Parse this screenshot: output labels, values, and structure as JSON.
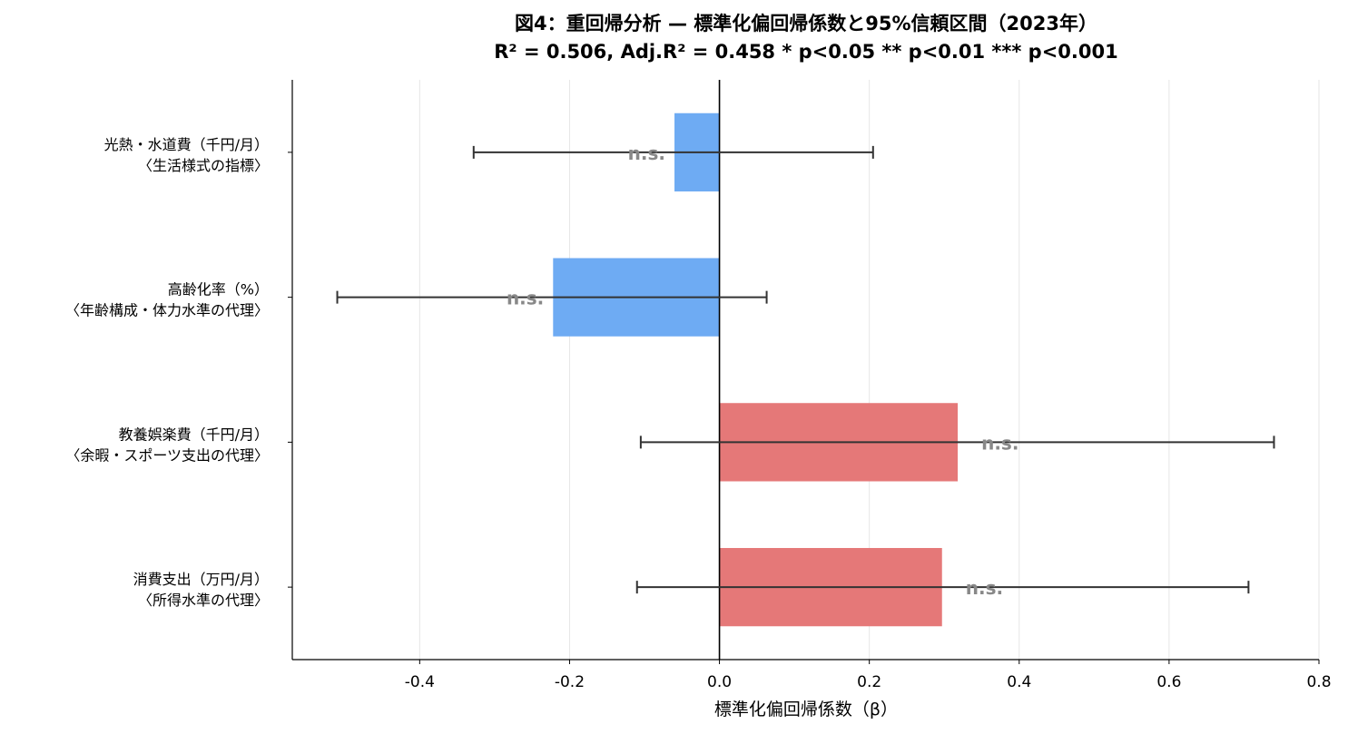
{
  "chart_data": {
    "type": "bar",
    "orientation": "horizontal",
    "title": "図4：重回帰分析 — 標準化偏回帰係数と95%信頼区間（2023年）",
    "subtitle": "R² = 0.506,  Adj.R² = 0.458   * p<0.05  ** p<0.01  *** p<0.001",
    "xlabel": "標準化偏回帰係数（β）",
    "ylabel": "",
    "xlim": [
      -0.57,
      0.8
    ],
    "xticks": [
      -0.4,
      -0.2,
      0.0,
      0.2,
      0.4,
      0.6,
      0.8
    ],
    "xtick_labels": [
      "-0.4",
      "-0.2",
      "0.0",
      "0.2",
      "0.4",
      "0.6",
      "0.8"
    ],
    "grid": "x",
    "categories": [
      {
        "line1": "光熱・水道費（千円/月）",
        "line2": "〈生活様式の指標〉"
      },
      {
        "line1": "高齢化率（%）",
        "line2": "〈年齢構成・体力水準の代理〉"
      },
      {
        "line1": "教養娯楽費（千円/月）",
        "line2": "〈余暇・スポーツ支出の代理〉"
      },
      {
        "line1": "消費支出（万円/月）",
        "line2": "〈所得水準の代理〉"
      }
    ],
    "values": [
      -0.06,
      -0.222,
      0.318,
      0.297
    ],
    "ci_low": [
      -0.328,
      -0.51,
      -0.105,
      -0.11
    ],
    "ci_high": [
      0.205,
      0.063,
      0.74,
      0.706
    ],
    "significance": [
      "n.s.",
      "n.s.",
      "n.s.",
      "n.s."
    ],
    "colors": {
      "negative": "#6eabf3",
      "positive": "#e57878",
      "errorbar": "#333333",
      "zero_line": "#000000",
      "sig_text": "#888888",
      "grid": "#e6e6e6"
    }
  }
}
